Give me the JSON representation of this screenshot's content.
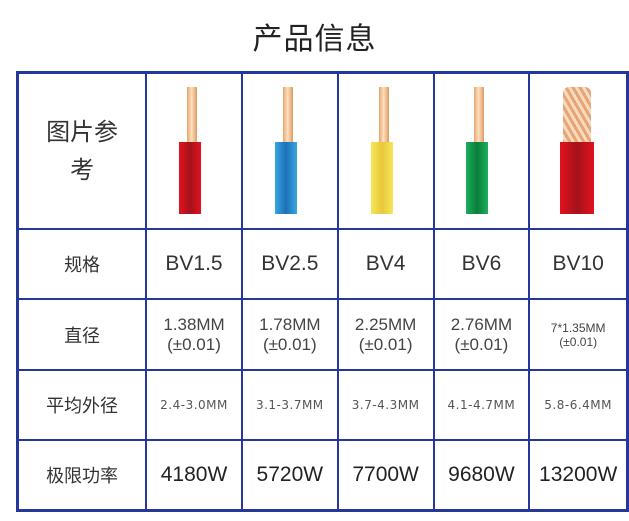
{
  "title": "产品信息",
  "row_headers": [
    "图片参考",
    "规格",
    "直径",
    "平均外径",
    "极限功率"
  ],
  "products": [
    {
      "spec": "BV1.5",
      "diameter": "1.38MM",
      "tolerance": "(±0.01)",
      "avg_outer": "2.4-3.0MM",
      "max_power": "4180W",
      "color": "#e3121f",
      "color_dark": "#a3121a"
    },
    {
      "spec": "BV2.5",
      "diameter": "1.78MM",
      "tolerance": "(±0.01)",
      "avg_outer": "3.1-3.7MM",
      "max_power": "5720W",
      "color": "#35a9e0",
      "color_dark": "#1f6fb8"
    },
    {
      "spec": "BV4",
      "diameter": "2.25MM",
      "tolerance": "(±0.01)",
      "avg_outer": "3.7-4.3MM",
      "max_power": "7700W",
      "color": "#f6e65a",
      "color_dark": "#e9c83a"
    },
    {
      "spec": "BV6",
      "diameter": "2.76MM",
      "tolerance": "(±0.01)",
      "avg_outer": "4.1-4.7MM",
      "max_power": "9680W",
      "color": "#1db05c",
      "color_dark": "#0a7d3c"
    },
    {
      "spec": "BV10",
      "diameter": "7*1.35MM",
      "tolerance": "(±0.01)",
      "avg_outer": "5.8-6.4MM",
      "max_power": "13200W",
      "color": "#e3121f",
      "color_dark": "#a3121a"
    }
  ]
}
